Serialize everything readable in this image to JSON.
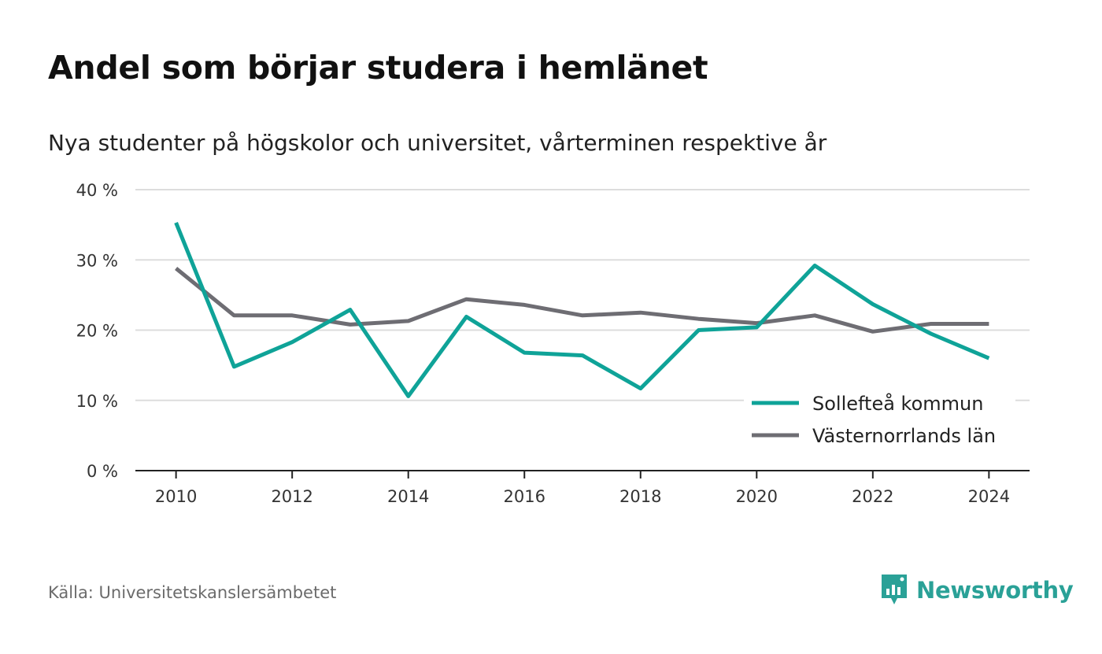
{
  "title": "Andel som börjar studera i hemlänet",
  "subtitle": "Nya studenter på högskolor och universitet, vårterminen respektive år",
  "source": "Källa: Universitetskanslersämbetet",
  "brand": "Newsworthy",
  "colors": {
    "solleftea": "#0fa398",
    "vasternorrland": "#6e6d73",
    "grid": "#dddddd",
    "axis": "#222222",
    "brand": "#2aa197"
  },
  "chart_data": {
    "type": "line",
    "x": [
      2010,
      2011,
      2012,
      2013,
      2014,
      2015,
      2016,
      2017,
      2018,
      2019,
      2020,
      2021,
      2022,
      2023,
      2024
    ],
    "x_ticks": [
      2010,
      2012,
      2014,
      2016,
      2018,
      2020,
      2022,
      2024
    ],
    "x_tick_labels": [
      "2010",
      "2012",
      "2014",
      "2016",
      "2018",
      "2020",
      "2022",
      "2024"
    ],
    "y_ticks": [
      0,
      10,
      20,
      30,
      40
    ],
    "y_tick_labels": [
      "0 %",
      "10 %",
      "20 %",
      "30 %",
      "40 %"
    ],
    "ylim": [
      0,
      40
    ],
    "xlim": [
      2009.3,
      2024.7
    ],
    "grid": true,
    "legend_position": "bottom-right",
    "series": [
      {
        "name": "Sollefteå kommun",
        "color": "#0fa398",
        "values": [
          35.3,
          14.8,
          18.3,
          22.9,
          10.6,
          21.9,
          16.8,
          16.4,
          11.7,
          20.0,
          20.4,
          29.2,
          23.7,
          19.5,
          16.0
        ]
      },
      {
        "name": "Västernorrlands län",
        "color": "#6e6d73",
        "values": [
          28.8,
          22.1,
          22.1,
          20.8,
          21.3,
          24.4,
          23.6,
          22.1,
          22.5,
          21.6,
          21.0,
          22.1,
          19.8,
          20.9,
          20.9
        ]
      }
    ]
  }
}
